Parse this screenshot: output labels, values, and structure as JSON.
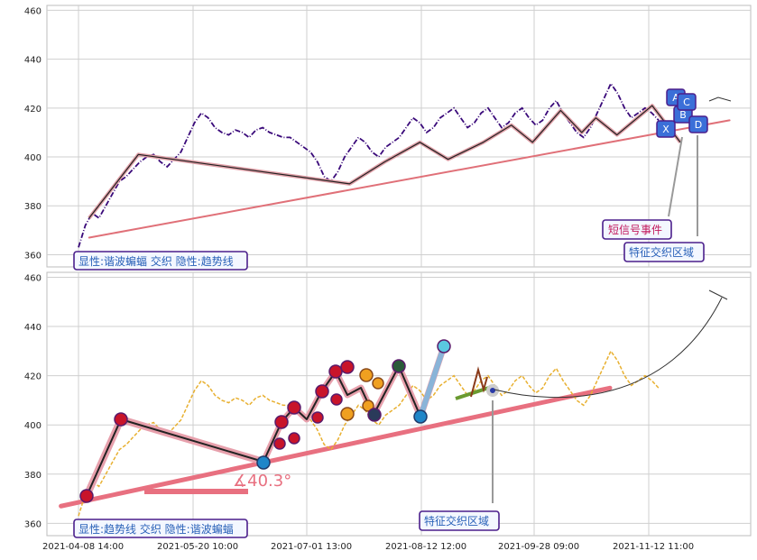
{
  "chart_data": [
    {
      "type": "line",
      "panel": "top",
      "y_ticks": [
        "460",
        "440",
        "420",
        "400",
        "380",
        "360"
      ],
      "ylim": [
        355,
        462
      ],
      "legend": "显性:谐波蝙蝠 交织 隐性:趋势线",
      "series": [
        {
          "kind": "price",
          "color": "#3a0a7a",
          "style": "dash-dot",
          "values": [
            363,
            372,
            377,
            375,
            380,
            385,
            390,
            392,
            395,
            398,
            400,
            401,
            398,
            396,
            399,
            402,
            408,
            414,
            418,
            416,
            412,
            410,
            409,
            411,
            410,
            408,
            411,
            412,
            410,
            409,
            408,
            408,
            406,
            404,
            402,
            398,
            392,
            390,
            394,
            400,
            404,
            408,
            406,
            402,
            400,
            404,
            406,
            408,
            412,
            416,
            414,
            410,
            412,
            416,
            418,
            420,
            416,
            412,
            414,
            418,
            420,
            416,
            412,
            414,
            418,
            420,
            416,
            413,
            415,
            420,
            423,
            418,
            414,
            410,
            408,
            412,
            418,
            424,
            430,
            426,
            420,
            416,
            418,
            420,
            418,
            415
          ]
        },
        {
          "kind": "harmonic-bat",
          "color": "#e0a0a8",
          "points": [
            [
              0.06,
              375
            ],
            [
              0.13,
              401
            ],
            [
              0.43,
              389
            ],
            [
              0.48,
              398
            ],
            [
              0.53,
              406
            ],
            [
              0.57,
              399
            ],
            [
              0.62,
              406
            ],
            [
              0.66,
              413
            ],
            [
              0.69,
              406
            ],
            [
              0.73,
              419
            ],
            [
              0.76,
              410
            ],
            [
              0.78,
              416
            ],
            [
              0.81,
              409
            ],
            [
              0.86,
              421
            ],
            [
              0.9,
              406
            ]
          ]
        }
      ],
      "trendline": {
        "color": "#e07078",
        "from": [
          0.06,
          367
        ],
        "to": [
          0.97,
          415
        ]
      },
      "pattern_points": [
        "X",
        "A",
        "B",
        "C",
        "D"
      ],
      "annotations": [
        {
          "label": "短信号事件",
          "color": "#c2185b"
        },
        {
          "label": "特征交织区域",
          "color": "#2a62b8"
        }
      ]
    },
    {
      "type": "line",
      "panel": "bottom",
      "y_ticks": [
        "460",
        "440",
        "420",
        "400",
        "380",
        "360"
      ],
      "ylim": [
        355,
        462
      ],
      "x_ticks": [
        "2021-04-08 14:00",
        "2021-05-20 10:00",
        "2021-07-01 13:00",
        "2021-08-12 12:00",
        "2021-09-28 09:00",
        "2021-11-12 11:00"
      ],
      "legend": "显性:趋势线 交织 隐性:谐波蝙蝠",
      "angle_label": "∡40.3°",
      "series": [
        {
          "kind": "price",
          "color": "#e8b030",
          "style": "dash",
          "values": [
            363,
            372,
            377,
            375,
            380,
            385,
            390,
            392,
            395,
            398,
            400,
            401,
            398,
            396,
            399,
            402,
            408,
            414,
            418,
            416,
            412,
            410,
            409,
            411,
            410,
            408,
            411,
            412,
            410,
            409,
            408,
            408,
            406,
            404,
            402,
            398,
            392,
            390,
            394,
            400,
            404,
            408,
            406,
            402,
            400,
            404,
            406,
            408,
            412,
            416,
            414,
            410,
            412,
            416,
            418,
            420,
            416,
            412,
            414,
            418,
            420,
            416,
            412,
            414,
            418,
            420,
            416,
            413,
            415,
            420,
            423,
            418,
            414,
            410,
            408,
            412,
            418,
            424,
            430,
            426,
            420,
            416,
            418,
            420,
            418,
            415
          ]
        }
      ],
      "trendline": {
        "color": "#e87080",
        "from": [
          0.02,
          367
        ],
        "to": [
          0.8,
          415
        ]
      },
      "annotations": [
        {
          "label": "特征交织区域",
          "color": "#2a62b8"
        }
      ]
    }
  ]
}
